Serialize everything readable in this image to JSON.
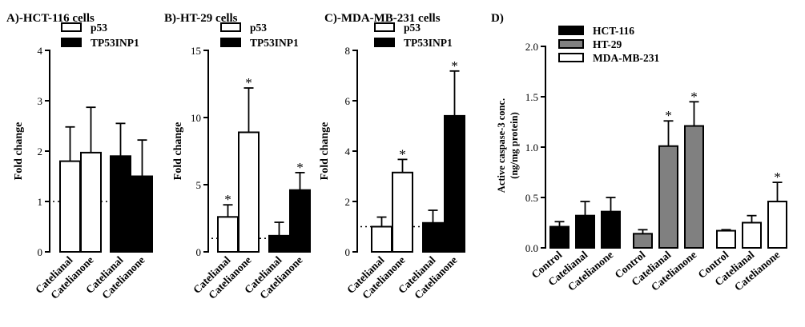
{
  "chart_data": [
    {
      "type": "bar",
      "title": "A)-HCT-116 cells",
      "ylabel": "Fold change",
      "ylim": [
        0,
        4
      ],
      "yticks": [
        "0",
        "1",
        "2",
        "3",
        "4"
      ],
      "categories": [
        "Catelianal",
        "Catelianone",
        "Catelianal",
        "Catelianone"
      ],
      "groups": [
        "p53",
        "p53",
        "TP53INP1",
        "TP53INP1"
      ],
      "values": [
        1.8,
        1.97,
        1.9,
        1.5
      ],
      "errors": [
        0.68,
        0.9,
        0.65,
        0.72
      ],
      "significant": [
        false,
        false,
        false,
        false
      ],
      "reference_line": 1,
      "legend": [
        {
          "label": "p53",
          "color": "#ffffff"
        },
        {
          "label": "TP53INP1",
          "color": "#000000"
        }
      ],
      "significance_marker": "*"
    },
    {
      "type": "bar",
      "title": "B)-HT-29 cells",
      "ylabel": "Fold change",
      "ylim": [
        0,
        15
      ],
      "yticks": [
        "0",
        "5",
        "10",
        "15"
      ],
      "categories": [
        "Catelianal",
        "Catelianone",
        "Catelianal",
        "Catelianone"
      ],
      "groups": [
        "p53",
        "p53",
        "TP53INP1",
        "TP53INP1"
      ],
      "values": [
        2.6,
        8.9,
        1.2,
        4.6
      ],
      "errors": [
        0.9,
        3.3,
        1.0,
        1.3
      ],
      "significant": [
        true,
        true,
        false,
        true
      ],
      "reference_line": 1,
      "legend": [
        {
          "label": "p53",
          "color": "#ffffff"
        },
        {
          "label": "TP53INP1",
          "color": "#000000"
        }
      ],
      "significance_marker": "*"
    },
    {
      "type": "bar",
      "title": "C)-MDA-MB-231 cells",
      "ylabel": "Fold change",
      "ylim": [
        0,
        8
      ],
      "yticks": [
        "0",
        "2",
        "4",
        "6",
        "8"
      ],
      "categories": [
        "Catelianal",
        "Catelianone",
        "Catelianal",
        "Catelianone"
      ],
      "groups": [
        "p53",
        "p53",
        "TP53INP1",
        "TP53INP1"
      ],
      "values": [
        1.0,
        3.15,
        1.15,
        5.4
      ],
      "errors": [
        0.38,
        0.52,
        0.5,
        1.78
      ],
      "significant": [
        false,
        true,
        false,
        true
      ],
      "reference_line": 1,
      "legend": [
        {
          "label": "p53",
          "color": "#ffffff"
        },
        {
          "label": "TP53INP1",
          "color": "#000000"
        }
      ],
      "significance_marker": "*"
    },
    {
      "type": "bar",
      "title": "D)",
      "ylabel": "Active caspase-3 conc.",
      "ylabel2": "(ng/mg protein)",
      "ylim": [
        0,
        2.0
      ],
      "yticks": [
        "0.0",
        "0.5",
        "1.0",
        "1.5",
        "2.0"
      ],
      "categories": [
        "Control",
        "Catelianal",
        "Catelianone",
        "Control",
        "Catelianal",
        "Catelianone",
        "Control",
        "Catelianal",
        "Catelianone"
      ],
      "groups": [
        "HCT-116",
        "HCT-116",
        "HCT-116",
        "HT-29",
        "HT-29",
        "HT-29",
        "MDA-MB-231",
        "MDA-MB-231",
        "MDA-MB-231"
      ],
      "values": [
        0.21,
        0.32,
        0.36,
        0.14,
        1.01,
        1.21,
        0.17,
        0.25,
        0.46
      ],
      "errors": [
        0.05,
        0.14,
        0.14,
        0.04,
        0.25,
        0.24,
        0.01,
        0.07,
        0.19
      ],
      "significant": [
        false,
        false,
        false,
        false,
        true,
        true,
        false,
        false,
        true
      ],
      "legend": [
        {
          "label": "HCT-116",
          "color": "#000000"
        },
        {
          "label": "HT-29",
          "color": "#808080"
        },
        {
          "label": "MDA-MB-231",
          "color": "#ffffff"
        }
      ],
      "significance_marker": "*"
    }
  ]
}
